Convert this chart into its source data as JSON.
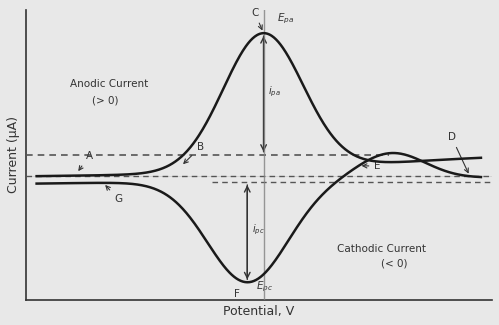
{
  "title": "",
  "xlabel": "Potential, V",
  "ylabel": "Current (μA)",
  "bg_color": "#f0f0f0",
  "line_color": "#1a1a1a",
  "annotation_color": "#333333",
  "dashed_color": "#555555",
  "figsize": [
    4.99,
    3.25
  ],
  "dpi": 100,
  "anodic_text": "Anodic Current",
  "anodic_sub": "(> 0)",
  "cathodic_text": "Cathodic Current",
  "cathodic_sub": "(< 0)"
}
